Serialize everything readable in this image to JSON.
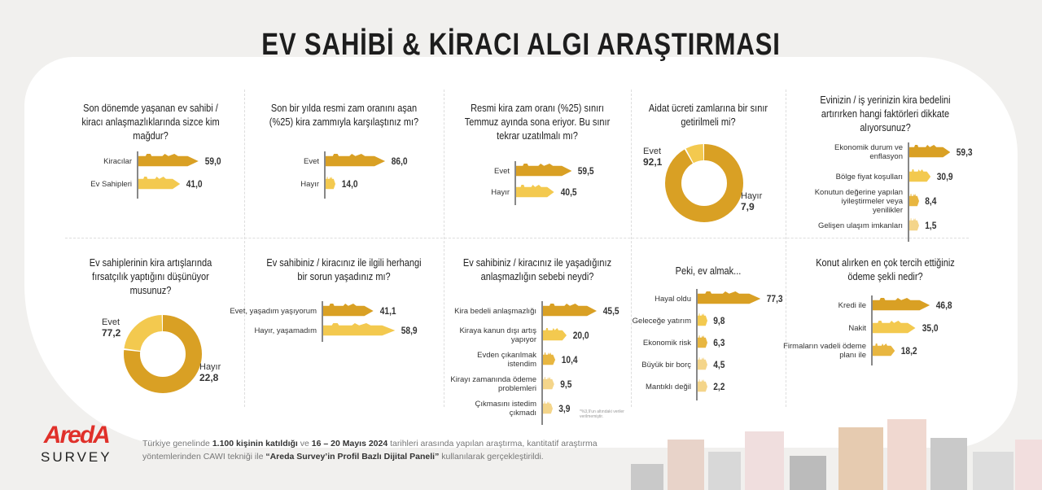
{
  "title": "EV SAHİBİ & KİRACI ALGI ARAŞTIRMASI",
  "colors": {
    "dark": "#d9a024",
    "mid": "#e8b640",
    "light": "#f3c94f",
    "pale": "#f4d58a"
  },
  "chart_data": [
    {
      "type": "bar",
      "title": "Son dönemde yaşanan ev sahibi / kiracı anlaşmazlıklarında sizce kim mağdur?",
      "categories": [
        "Kiracılar",
        "Ev Sahipleri"
      ],
      "values": [
        59.0,
        41.0
      ],
      "labels": [
        "59,0",
        "41,0"
      ]
    },
    {
      "type": "bar",
      "title": "Son bir yılda resmi zam oranını aşan (%25) kira zammıyla karşılaştınız mı?",
      "categories": [
        "Evet",
        "Hayır"
      ],
      "values": [
        86.0,
        14.0
      ],
      "labels": [
        "86,0",
        "14,0"
      ]
    },
    {
      "type": "bar",
      "title": "Resmi kira zam oranı (%25) sınırı Temmuz ayında sona eriyor. Bu sınır tekrar uzatılmalı mı?",
      "categories": [
        "Evet",
        "Hayır"
      ],
      "values": [
        59.5,
        40.5
      ],
      "labels": [
        "59,5",
        "40,5"
      ]
    },
    {
      "type": "pie",
      "title": "Aidat ücreti zamlarına bir sınır getirilmeli mi?",
      "categories": [
        "Evet",
        "Hayır"
      ],
      "values": [
        92.1,
        7.9
      ],
      "labels": [
        "92,1",
        "7,9"
      ]
    },
    {
      "type": "bar",
      "title": "Evinizin / iş yerinizin kira bedelini artırırken hangi faktörleri dikkate alıyorsunuz?",
      "categories": [
        "Ekonomik durum ve enflasyon",
        "Bölge fiyat koşulları",
        "Konutun değerine yapılan iyileştirmeler veya yenilikler",
        "Gelişen ulaşım imkanları"
      ],
      "values": [
        59.3,
        30.9,
        8.4,
        1.5
      ],
      "labels": [
        "59,3",
        "30,9",
        "8,4",
        "1,5"
      ]
    },
    {
      "type": "pie",
      "title": "Ev sahiplerinin kira artışlarında fırsatçılık yaptığını düşünüyor musunuz?",
      "categories": [
        "Evet",
        "Hayır"
      ],
      "values": [
        77.2,
        22.8
      ],
      "labels": [
        "77,2",
        "22,8"
      ]
    },
    {
      "type": "bar",
      "title": "Ev sahibiniz / kiracınız ile ilgili herhangi bir sorun yaşadınız mı?",
      "categories": [
        "Evet, yaşadım yaşıyorum",
        "Hayır, yaşamadım"
      ],
      "values": [
        41.1,
        58.9
      ],
      "labels": [
        "41,1",
        "58,9"
      ]
    },
    {
      "type": "bar",
      "title": "Ev sahibiniz / kiracınız ile yaşadığınız anlaşmazlığın sebebi neydi?",
      "categories": [
        "Kira bedeli anlaşmazlığı",
        "Kiraya kanun dışı artış yapıyor",
        "Evden çıkarılmak istendim",
        "Kirayı zamanında ödeme problemleri",
        "Çıkmasını istedim çıkmadı"
      ],
      "values": [
        45.5,
        20.0,
        10.4,
        9.5,
        3.9
      ],
      "labels": [
        "45,5",
        "20,0",
        "10,4",
        "9,5",
        "3,9"
      ],
      "note": "*%3,9'un altındaki veriler verilmemiştir."
    },
    {
      "type": "bar",
      "title": "Peki, ev almak...",
      "categories": [
        "Hayal oldu",
        "Geleceğe yatırım",
        "Ekonomik risk",
        "Büyük bir borç",
        "Mantıklı değil"
      ],
      "values": [
        77.3,
        9.8,
        6.3,
        4.5,
        2.2
      ],
      "labels": [
        "77,3",
        "9,8",
        "6,3",
        "4,5",
        "2,2"
      ]
    },
    {
      "type": "bar",
      "title": "Konut alırken en çok tercih ettiğiniz ödeme şekli nedir?",
      "categories": [
        "Kredi ile",
        "Nakit",
        "Firmaların vadeli ödeme planı ile"
      ],
      "values": [
        46.8,
        35.0,
        18.2
      ],
      "labels": [
        "46,8",
        "35,0",
        "18,2"
      ]
    }
  ],
  "logo": {
    "brand": "AredA",
    "sub": "SURVEY"
  },
  "footer": {
    "p1": "Türkiye genelinde ",
    "b1": "1.100 kişinin katıldığı",
    "p2": " ve ",
    "b2": "16 – 20 Mayıs 2024",
    "p3": " tarihleri arasında yapılan araştırma, kantitatif araştırma yöntemlerinden CAWI tekniği ile ",
    "b3": "“Areda Survey’in Profil Bazlı Dijital Paneli”",
    "p4": " kullanılarak gerçekleştirildi."
  }
}
